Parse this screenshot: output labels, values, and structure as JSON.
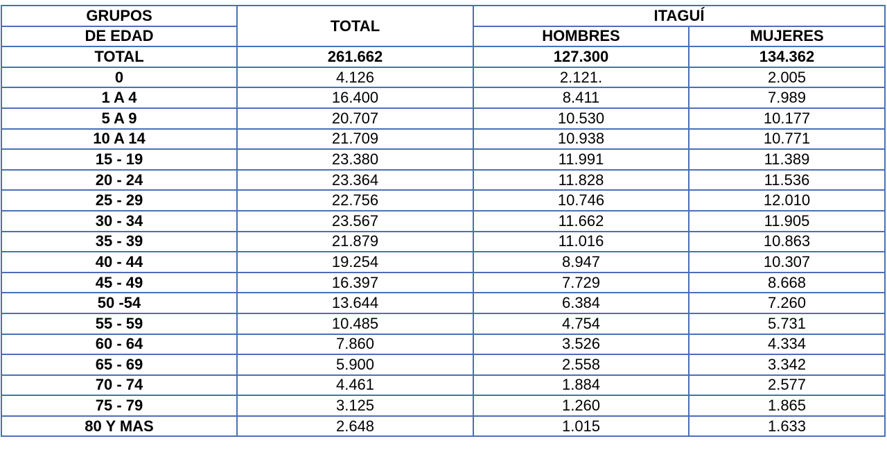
{
  "header": {
    "age_group_line1": "GRUPOS",
    "age_group_line2": "DE EDAD",
    "total": "TOTAL",
    "region": "ITAGUÍ",
    "men": "HOMBRES",
    "women": "MUJERES"
  },
  "totals": {
    "label": "TOTAL",
    "total": "261.662",
    "men": "127.300",
    "women": "134.362"
  },
  "rows": [
    {
      "group": "0",
      "total": "4.126",
      "men": "2.121.",
      "women": "2.005"
    },
    {
      "group": "1 A 4",
      "total": "16.400",
      "men": "8.411",
      "women": "7.989"
    },
    {
      "group": "5 A 9",
      "total": "20.707",
      "men": "10.530",
      "women": "10.177"
    },
    {
      "group": "10 A 14",
      "total": "21.709",
      "men": "10.938",
      "women": "10.771"
    },
    {
      "group": "15 - 19",
      "total": "23.380",
      "men": "11.991",
      "women": "11.389"
    },
    {
      "group": "20 - 24",
      "total": "23.364",
      "men": "11.828",
      "women": "11.536"
    },
    {
      "group": "25 - 29",
      "total": "22.756",
      "men": "10.746",
      "women": "12.010"
    },
    {
      "group": "30 - 34",
      "total": "23.567",
      "men": "11.662",
      "women": "11.905"
    },
    {
      "group": "35 - 39",
      "total": "21.879",
      "men": "11.016",
      "women": "10.863"
    },
    {
      "group": "40 - 44",
      "total": "19.254",
      "men": "8.947",
      "women": "10.307"
    },
    {
      "group": "45 - 49",
      "total": "16.397",
      "men": "7.729",
      "women": "8.668"
    },
    {
      "group": "50 -54",
      "total": "13.644",
      "men": "6.384",
      "women": "7.260"
    },
    {
      "group": "55 - 59",
      "total": "10.485",
      "men": "4.754",
      "women": "5.731"
    },
    {
      "group": "60 - 64",
      "total": "7.860",
      "men": "3.526",
      "women": "4.334"
    },
    {
      "group": "65 - 69",
      "total": "5.900",
      "men": "2.558",
      "women": "3.342"
    },
    {
      "group": "70 - 74",
      "total": "4.461",
      "men": "1.884",
      "women": "2.577"
    },
    {
      "group": "75 - 79",
      "total": "3.125",
      "men": "1.260",
      "women": "1.865"
    },
    {
      "group": "80 Y MAS",
      "total": "2.648",
      "men": "1.015",
      "women": "1.633"
    }
  ],
  "colors": {
    "grid_border": "#4a6fb8",
    "text": "#000000",
    "background": "#ffffff"
  }
}
